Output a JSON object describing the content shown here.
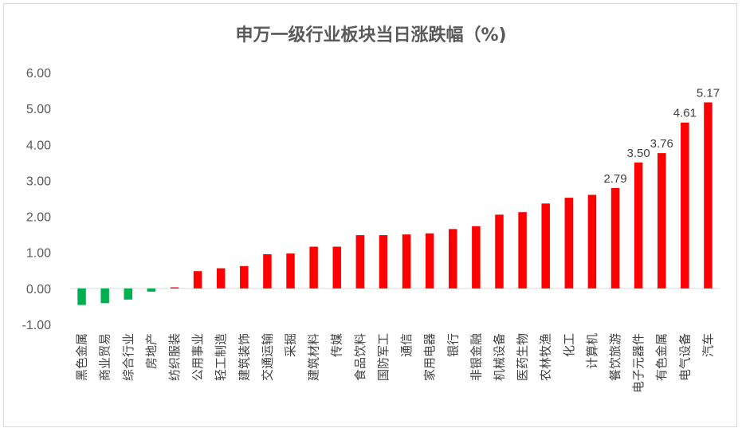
{
  "chart_data": {
    "type": "bar",
    "title": "申万一级行业板块当日涨跌幅（%)",
    "xlabel": "",
    "ylabel": "",
    "ylim": [
      -1.0,
      6.0
    ],
    "yticks": [
      "6.00",
      "5.00",
      "4.00",
      "3.00",
      "2.00",
      "1.00",
      "0.00",
      "-1.00"
    ],
    "grid": false,
    "legend": "none",
    "colors": {
      "positive": "#ff0000",
      "negative": "#00b050",
      "axis": "#d9d9d9",
      "text": "#595959"
    },
    "categories": [
      "黑色金属",
      "商业贸易",
      "综合行业",
      "房地产",
      "纺织服装",
      "公用事业",
      "轻工制造",
      "建筑装饰",
      "交通运输",
      "采掘",
      "建筑材料",
      "传媒",
      "食品饮料",
      "国防军工",
      "通信",
      "家用电器",
      "银行",
      "非银金融",
      "机械设备",
      "医药生物",
      "农林牧渔",
      "化工",
      "计算机",
      "餐饮旅游",
      "电子元器件",
      "有色金属",
      "电气设备",
      "汽车"
    ],
    "values": [
      -0.46,
      -0.41,
      -0.31,
      -0.09,
      0.03,
      0.48,
      0.56,
      0.62,
      0.95,
      0.97,
      1.16,
      1.16,
      1.48,
      1.48,
      1.5,
      1.53,
      1.65,
      1.73,
      2.05,
      2.12,
      2.36,
      2.52,
      2.6,
      2.79,
      3.5,
      3.76,
      4.61,
      5.17
    ],
    "data_labels": [
      {
        "index": 23,
        "text": "2.79"
      },
      {
        "index": 24,
        "text": "3.50"
      },
      {
        "index": 25,
        "text": "3.76"
      },
      {
        "index": 26,
        "text": "4.61"
      },
      {
        "index": 27,
        "text": "5.17"
      }
    ]
  }
}
